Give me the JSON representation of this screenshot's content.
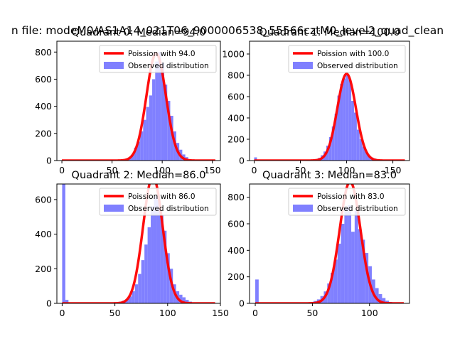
{
  "figure_title": "n file: modeM0/AS1A14_021T06_9000006538_55566cztM0_level2_quad_clean",
  "colors": {
    "poisson_line": "#ff0000",
    "observed_bars": "#8080ff",
    "axes": "#000000",
    "legend_border": "#cccccc"
  },
  "chart_data": [
    {
      "type": "histogram",
      "title": "Quadrant 0: Median=94.0",
      "median": 94.0,
      "xlim": [
        -5,
        158
      ],
      "ylim": [
        0,
        880
      ],
      "xticks": [
        0,
        50,
        100,
        150
      ],
      "yticks": [
        0,
        200,
        400,
        600,
        800
      ],
      "legend_position": "top-right",
      "legend": [
        "Poission with 94.0",
        "Observed distribution"
      ],
      "bin_width": 3,
      "bins": [
        [
          60,
          5
        ],
        [
          63,
          10
        ],
        [
          66,
          22
        ],
        [
          69,
          45
        ],
        [
          72,
          95
        ],
        [
          75,
          140
        ],
        [
          78,
          215
        ],
        [
          81,
          300
        ],
        [
          84,
          395
        ],
        [
          87,
          480
        ],
        [
          90,
          600
        ],
        [
          93,
          730
        ],
        [
          96,
          800
        ],
        [
          99,
          720
        ],
        [
          102,
          560
        ],
        [
          105,
          440
        ],
        [
          108,
          330
        ],
        [
          111,
          215
        ],
        [
          114,
          130
        ],
        [
          117,
          80
        ],
        [
          120,
          45
        ],
        [
          123,
          25
        ],
        [
          126,
          10
        ],
        [
          129,
          5
        ]
      ]
    },
    {
      "type": "histogram",
      "title": "Quadrant 1: Median=100.0",
      "median": 100.0,
      "xlim": [
        -5,
        168
      ],
      "ylim": [
        0,
        1120
      ],
      "xticks": [
        0,
        50,
        100,
        150
      ],
      "yticks": [
        0,
        200,
        400,
        600,
        800,
        1000
      ],
      "legend_position": "top-right",
      "legend": [
        "Poission with 100.0",
        "Observed distribution"
      ],
      "bin_width": 3,
      "bins": [
        [
          0,
          30
        ],
        [
          3,
          5
        ],
        [
          66,
          10
        ],
        [
          69,
          25
        ],
        [
          72,
          50
        ],
        [
          75,
          85
        ],
        [
          78,
          140
        ],
        [
          81,
          220
        ],
        [
          84,
          320
        ],
        [
          87,
          440
        ],
        [
          90,
          610
        ],
        [
          93,
          720
        ],
        [
          96,
          770
        ],
        [
          99,
          800
        ],
        [
          102,
          760
        ],
        [
          105,
          560
        ],
        [
          108,
          450
        ],
        [
          111,
          290
        ],
        [
          114,
          200
        ],
        [
          117,
          130
        ],
        [
          120,
          80
        ],
        [
          123,
          45
        ],
        [
          126,
          28
        ],
        [
          129,
          18
        ],
        [
          132,
          10
        ],
        [
          135,
          5
        ]
      ]
    },
    {
      "type": "histogram",
      "title": "Quadrant 2: Median=86.0",
      "median": 86.0,
      "xlim": [
        -5,
        150
      ],
      "ylim": [
        0,
        690
      ],
      "xticks": [
        0,
        50,
        100,
        150
      ],
      "yticks": [
        0,
        200,
        400,
        600
      ],
      "legend_position": "top-right",
      "legend": [
        "Poission with 86.0",
        "Observed distribution"
      ],
      "bin_width": 3,
      "bins": [
        [
          0,
          690
        ],
        [
          3,
          20
        ],
        [
          48,
          5
        ],
        [
          51,
          5
        ],
        [
          54,
          10
        ],
        [
          57,
          15
        ],
        [
          60,
          25
        ],
        [
          63,
          40
        ],
        [
          66,
          70
        ],
        [
          69,
          110
        ],
        [
          72,
          170
        ],
        [
          75,
          250
        ],
        [
          78,
          340
        ],
        [
          81,
          440
        ],
        [
          84,
          560
        ],
        [
          87,
          620
        ],
        [
          90,
          600
        ],
        [
          93,
          510
        ],
        [
          96,
          420
        ],
        [
          99,
          290
        ],
        [
          102,
          200
        ],
        [
          105,
          110
        ],
        [
          108,
          70
        ],
        [
          111,
          50
        ],
        [
          114,
          35
        ],
        [
          117,
          20
        ],
        [
          120,
          10
        ]
      ]
    },
    {
      "type": "histogram",
      "title": "Quadrant 3: Median=83.0",
      "median": 83.0,
      "xlim": [
        -5,
        135
      ],
      "ylim": [
        0,
        900
      ],
      "xticks": [
        0,
        50,
        100
      ],
      "yticks": [
        0,
        200,
        400,
        600,
        800
      ],
      "legend_position": "top-right",
      "legend": [
        "Poission with 83.0",
        "Observed distribution"
      ],
      "bin_width": 3,
      "bins": [
        [
          0,
          180
        ],
        [
          45,
          5
        ],
        [
          48,
          10
        ],
        [
          51,
          18
        ],
        [
          54,
          30
        ],
        [
          57,
          55
        ],
        [
          60,
          90
        ],
        [
          63,
          150
        ],
        [
          66,
          230
        ],
        [
          69,
          330
        ],
        [
          72,
          450
        ],
        [
          75,
          600
        ],
        [
          78,
          720
        ],
        [
          81,
          740
        ],
        [
          84,
          540
        ],
        [
          87,
          700
        ],
        [
          90,
          560
        ],
        [
          93,
          480
        ],
        [
          96,
          380
        ],
        [
          99,
          280
        ],
        [
          102,
          180
        ],
        [
          105,
          115
        ],
        [
          108,
          70
        ],
        [
          111,
          40
        ],
        [
          114,
          20
        ],
        [
          117,
          10
        ]
      ]
    }
  ]
}
